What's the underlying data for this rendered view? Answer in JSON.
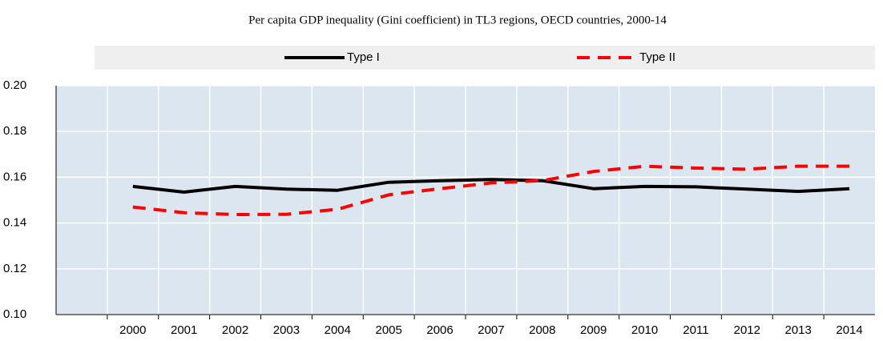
{
  "chart_data": {
    "type": "line",
    "title": "Per capita GDP inequality (Gini coefficient) in TL3 regions, OECD countries, 2000-14",
    "categories": [
      null,
      "2000",
      "2001",
      "2002",
      "2003",
      "2004",
      "2005",
      "2006",
      "2007",
      "2008",
      "2009",
      "2010",
      "2011",
      "2012",
      "2013",
      "2014"
    ],
    "series": [
      {
        "name": "Type I",
        "color": "#000000",
        "dash": false,
        "values": [
          null,
          0.156,
          0.1535,
          0.156,
          0.1548,
          0.1543,
          0.1578,
          0.1585,
          0.159,
          0.1585,
          0.155,
          0.156,
          0.1558,
          0.1548,
          0.1538,
          0.155
        ]
      },
      {
        "name": "Type II",
        "color": "#ff0000",
        "dash": true,
        "values": [
          null,
          0.147,
          0.1445,
          0.1437,
          0.1438,
          0.146,
          0.1523,
          0.155,
          0.1575,
          0.1585,
          0.1625,
          0.1648,
          0.164,
          0.1635,
          0.1648,
          0.1648
        ]
      }
    ],
    "ylim": [
      0.1,
      0.2
    ],
    "yticks": [
      {
        "value": 0.1,
        "label": "0.10"
      },
      0.12,
      0.14,
      0.16,
      0.18,
      {
        "value": 0.2,
        "label": "0.20"
      }
    ],
    "grid": true,
    "legend": "top",
    "plot_background": "#dce6f1"
  }
}
